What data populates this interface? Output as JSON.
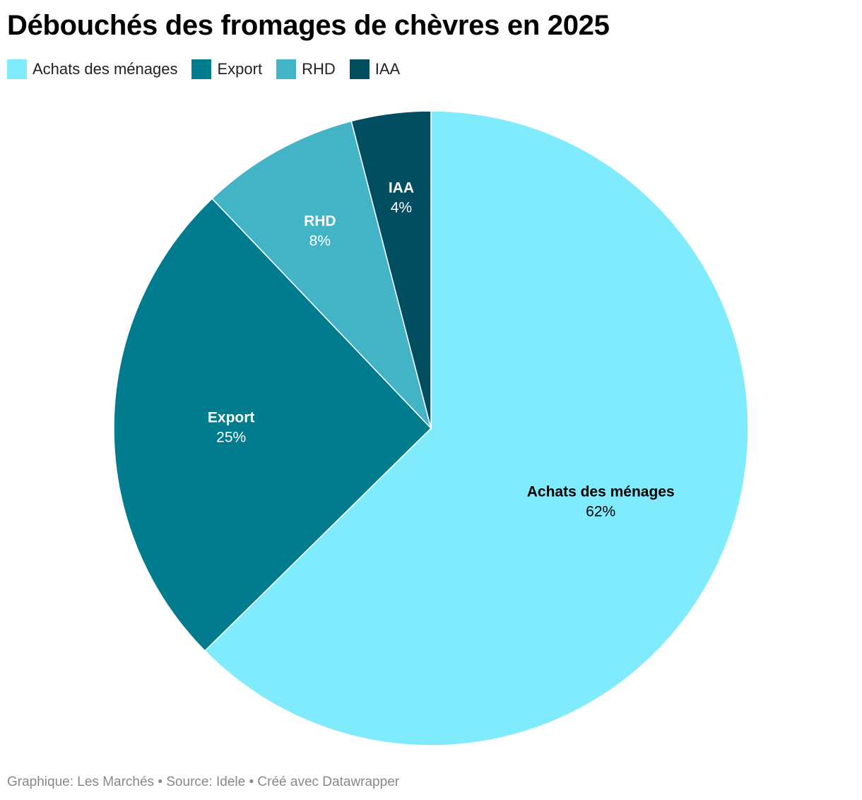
{
  "title": "Débouchés des fromages de chèvres en 2025",
  "chart_data": {
    "type": "pie",
    "title": "Débouchés des fromages de chèvres en 2025",
    "legend_position": "top-left",
    "slices": [
      {
        "label": "Achats des ménages",
        "value": 62,
        "value_label": "62%",
        "color": "#7FEBFC",
        "label_color": "#000000"
      },
      {
        "label": "Export",
        "value": 25,
        "value_label": "25%",
        "color": "#007C8E",
        "label_color": "#ffffff"
      },
      {
        "label": "RHD",
        "value": 8,
        "value_label": "8%",
        "color": "#42B4C6",
        "label_color": "#ffffff"
      },
      {
        "label": "IAA",
        "value": 4,
        "value_label": "4%",
        "color": "#004E5F",
        "label_color": "#ffffff"
      }
    ]
  },
  "footer": "Graphique: Les Marchés • Source: Idele • Créé avec Datawrapper"
}
